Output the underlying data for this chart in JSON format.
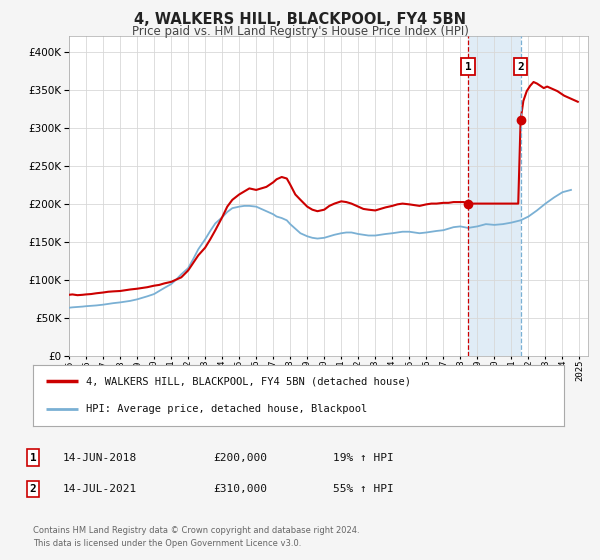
{
  "title": "4, WALKERS HILL, BLACKPOOL, FY4 5BN",
  "subtitle": "Price paid vs. HM Land Registry's House Price Index (HPI)",
  "red_label": "4, WALKERS HILL, BLACKPOOL, FY4 5BN (detached house)",
  "blue_label": "HPI: Average price, detached house, Blackpool",
  "annotation1_date": "14-JUN-2018",
  "annotation1_price": "£200,000",
  "annotation1_hpi": "19% ↑ HPI",
  "annotation1_year": 2018.45,
  "annotation1_value": 200000,
  "annotation2_date": "14-JUL-2021",
  "annotation2_price": "£310,000",
  "annotation2_hpi": "55% ↑ HPI",
  "annotation2_year": 2021.54,
  "annotation2_value": 310000,
  "vline1_year": 2018.45,
  "vline2_year": 2021.54,
  "shade_start": 2018.45,
  "shade_end": 2021.54,
  "ylim": [
    0,
    420000
  ],
  "xlim_start": 1995.0,
  "xlim_end": 2025.5,
  "background_color": "#f5f5f5",
  "plot_bg": "#ffffff",
  "red_color": "#cc0000",
  "blue_color": "#7ab0d4",
  "shade_color": "#cce0f0",
  "vline_color": "#cc0000",
  "vline2_color": "#7ab0d4",
  "footer": "Contains HM Land Registry data © Crown copyright and database right 2024.\nThis data is licensed under the Open Government Licence v3.0.",
  "red_data_x": [
    1995.0,
    1995.2,
    1995.5,
    1995.8,
    1996.0,
    1996.3,
    1996.6,
    1997.0,
    1997.3,
    1997.6,
    1998.0,
    1998.3,
    1998.6,
    1999.0,
    1999.3,
    1999.6,
    2000.0,
    2000.3,
    2000.6,
    2001.0,
    2001.3,
    2001.6,
    2002.0,
    2002.3,
    2002.6,
    2003.0,
    2003.3,
    2003.6,
    2004.0,
    2004.3,
    2004.6,
    2005.0,
    2005.3,
    2005.6,
    2006.0,
    2006.3,
    2006.6,
    2007.0,
    2007.2,
    2007.5,
    2007.8,
    2008.0,
    2008.3,
    2008.6,
    2009.0,
    2009.3,
    2009.6,
    2010.0,
    2010.3,
    2010.6,
    2011.0,
    2011.3,
    2011.6,
    2012.0,
    2012.3,
    2012.6,
    2013.0,
    2013.3,
    2013.6,
    2014.0,
    2014.3,
    2014.6,
    2015.0,
    2015.3,
    2015.6,
    2016.0,
    2016.3,
    2016.6,
    2017.0,
    2017.3,
    2017.6,
    2018.0,
    2018.2,
    2018.45,
    2018.7,
    2019.0,
    2019.3,
    2019.6,
    2020.0,
    2020.3,
    2020.6,
    2021.0,
    2021.2,
    2021.4,
    2021.54,
    2021.7,
    2021.9,
    2022.1,
    2022.3,
    2022.5,
    2022.7,
    2022.9,
    2023.1,
    2023.3,
    2023.5,
    2023.7,
    2023.9,
    2024.1,
    2024.3,
    2024.5,
    2024.7,
    2024.9
  ],
  "red_data_y": [
    80000,
    80500,
    79500,
    80000,
    80500,
    81000,
    82000,
    83000,
    84000,
    84500,
    85000,
    86000,
    87000,
    88000,
    89000,
    90000,
    92000,
    93000,
    95000,
    97000,
    100000,
    103000,
    112000,
    122000,
    132000,
    142000,
    153000,
    165000,
    182000,
    196000,
    205000,
    212000,
    216000,
    220000,
    218000,
    220000,
    222000,
    228000,
    232000,
    235000,
    233000,
    225000,
    212000,
    205000,
    196000,
    192000,
    190000,
    192000,
    197000,
    200000,
    203000,
    202000,
    200000,
    196000,
    193000,
    192000,
    191000,
    193000,
    195000,
    197000,
    199000,
    200000,
    199000,
    198000,
    197000,
    199000,
    200000,
    200000,
    201000,
    201000,
    202000,
    202000,
    202000,
    200000,
    200000,
    200000,
    200000,
    200000,
    200000,
    200000,
    200000,
    200000,
    200000,
    200000,
    310000,
    335000,
    348000,
    355000,
    360000,
    358000,
    355000,
    352000,
    354000,
    352000,
    350000,
    348000,
    345000,
    342000,
    340000,
    338000,
    336000,
    334000
  ],
  "blue_data_x": [
    1995.0,
    1995.2,
    1995.5,
    1995.8,
    1996.0,
    1996.3,
    1996.6,
    1997.0,
    1997.3,
    1997.6,
    1998.0,
    1998.3,
    1998.6,
    1999.0,
    1999.3,
    1999.6,
    2000.0,
    2000.3,
    2000.6,
    2001.0,
    2001.3,
    2001.6,
    2002.0,
    2002.3,
    2002.6,
    2003.0,
    2003.3,
    2003.6,
    2004.0,
    2004.3,
    2004.6,
    2005.0,
    2005.3,
    2005.6,
    2006.0,
    2006.3,
    2006.6,
    2007.0,
    2007.2,
    2007.5,
    2007.8,
    2008.0,
    2008.3,
    2008.6,
    2009.0,
    2009.3,
    2009.6,
    2010.0,
    2010.3,
    2010.6,
    2011.0,
    2011.3,
    2011.6,
    2012.0,
    2012.3,
    2012.6,
    2013.0,
    2013.3,
    2013.6,
    2014.0,
    2014.3,
    2014.6,
    2015.0,
    2015.3,
    2015.6,
    2016.0,
    2016.3,
    2016.6,
    2017.0,
    2017.3,
    2017.6,
    2018.0,
    2018.45,
    2019.0,
    2019.5,
    2020.0,
    2020.5,
    2021.0,
    2021.54,
    2022.0,
    2022.5,
    2023.0,
    2023.5,
    2024.0,
    2024.5
  ],
  "blue_data_y": [
    63000,
    63500,
    64000,
    64500,
    65000,
    65500,
    66000,
    67000,
    68000,
    69000,
    70000,
    71000,
    72000,
    74000,
    76000,
    78000,
    81000,
    85000,
    89000,
    94000,
    100000,
    107000,
    115000,
    127000,
    140000,
    153000,
    164000,
    174000,
    182000,
    189000,
    194000,
    196000,
    197000,
    197000,
    196000,
    193000,
    190000,
    186000,
    183000,
    181000,
    178000,
    173000,
    167000,
    161000,
    157000,
    155000,
    154000,
    155000,
    157000,
    159000,
    161000,
    162000,
    162000,
    160000,
    159000,
    158000,
    158000,
    159000,
    160000,
    161000,
    162000,
    163000,
    163000,
    162000,
    161000,
    162000,
    163000,
    164000,
    165000,
    167000,
    169000,
    170000,
    168000,
    170000,
    173000,
    172000,
    173000,
    175000,
    178000,
    183000,
    191000,
    200000,
    208000,
    215000,
    218000
  ]
}
